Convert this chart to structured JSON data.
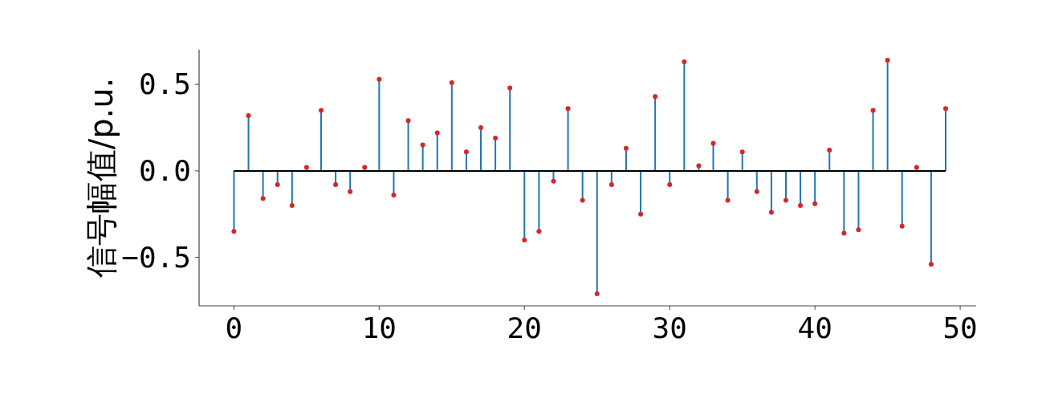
{
  "chart_data": {
    "type": "lollipop",
    "ylabel": "信号幅值/p.u.",
    "x": [
      0,
      1,
      2,
      3,
      4,
      5,
      6,
      7,
      8,
      9,
      10,
      11,
      12,
      13,
      14,
      15,
      16,
      17,
      18,
      19,
      20,
      21,
      22,
      23,
      24,
      25,
      26,
      27,
      28,
      29,
      30,
      31,
      32,
      33,
      34,
      35,
      36,
      37,
      38,
      39,
      40,
      41,
      42,
      43,
      44,
      45,
      46,
      47,
      48,
      49
    ],
    "series": [
      {
        "color": "#1f77b4",
        "values": [
          -0.35,
          0.32,
          -0.16,
          -0.08,
          -0.2,
          0.02,
          0.35,
          -0.08,
          -0.12,
          0.02,
          0.53,
          -0.14,
          0.29,
          0.15,
          0.22,
          0.51,
          0.11,
          0.25,
          0.19,
          0.48,
          -0.4,
          -0.35,
          -0.06,
          0.36,
          -0.17,
          -0.71,
          -0.08,
          0.13,
          -0.25,
          0.43,
          -0.08,
          0.63,
          0.03,
          0.16,
          -0.17,
          0.11,
          -0.12,
          -0.24,
          -0.17,
          -0.2,
          -0.19,
          0.12,
          -0.36,
          -0.34,
          0.35,
          0.64,
          -0.32,
          0.02,
          -0.54,
          0.36
        ],
        "colors": [
          "#d62728",
          "#d62728",
          "#d62728",
          "#d62728",
          "#d62728",
          "#d62728",
          "#d62728",
          "#d62728",
          "#d62728",
          "#d62728",
          "#d62728",
          "#d62728",
          "#d62728",
          "#d62728",
          "#d62728",
          "#d62728",
          "#d62728",
          "#d62728",
          "#d62728",
          "#d62728",
          "#d62728",
          "#d62728",
          "#d62728",
          "#d62728",
          "#d62728",
          "#d62728",
          "#d62728",
          "#d62728",
          "#d62728",
          "#d62728",
          "#d62728",
          "#d62728",
          "#d62728",
          "#d62728",
          "#d62728",
          "#d62728",
          "#d62728",
          "#d62728",
          "#d62728",
          "#d62728",
          "#d62728",
          "#d62728",
          "#d62728",
          "#d62728",
          "#d62728",
          "#d62728",
          "#d62728",
          "#d62728",
          "#d62728",
          "#d62728"
        ]
      }
    ],
    "marker": "circle",
    "xlim": [
      -2.4,
      51.1
    ],
    "ylim": [
      -0.78,
      0.7
    ],
    "xticks": [
      0,
      10,
      20,
      30,
      40,
      50
    ],
    "yticks": [
      {
        "value": -0.5,
        "label": "−0.5"
      },
      {
        "value": 0,
        "label": "0.0"
      },
      {
        "value": 0.5,
        "label": "0.5"
      }
    ],
    "ref_lines": [
      {
        "axis": "y",
        "value": 0,
        "color": "#000000"
      }
    ],
    "grid": false
  }
}
